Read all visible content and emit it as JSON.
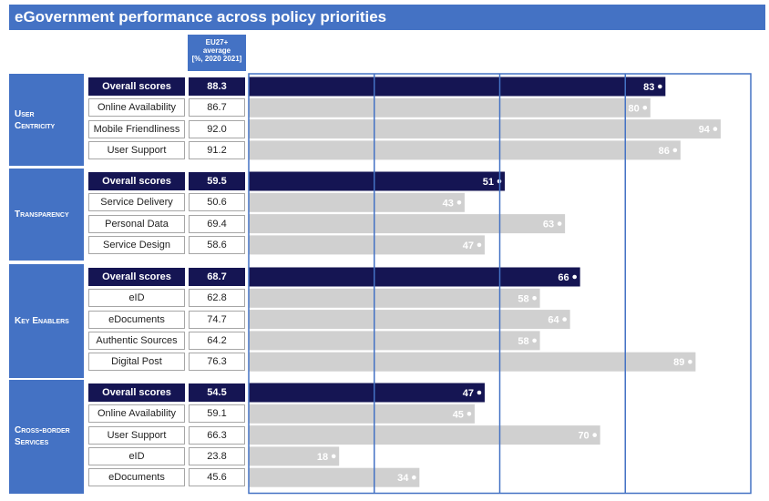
{
  "title": "eGovernment performance across policy priorities",
  "average_header": [
    "EU27+",
    "average",
    "[%, 2020 2021]"
  ],
  "chart_data": {
    "type": "bar",
    "orientation": "horizontal",
    "xlim": [
      0,
      100
    ],
    "grid": true,
    "colors": {
      "overall": "#151553",
      "sub": "#d0d0d0",
      "grid": "#4472c4",
      "header": "#4472c4"
    },
    "groups": [
      {
        "name": "User\nCentricity",
        "rows": [
          {
            "label": "Overall scores",
            "average": "88.3",
            "value": 83,
            "overall": true
          },
          {
            "label": "Online Availability",
            "average": "86.7",
            "value": 80
          },
          {
            "label": "Mobile Friendliness",
            "average": "92.0",
            "value": 94
          },
          {
            "label": "User Support",
            "average": "91.2",
            "value": 86
          }
        ]
      },
      {
        "name": "Transparency",
        "rows": [
          {
            "label": "Overall scores",
            "average": "59.5",
            "value": 51,
            "overall": true
          },
          {
            "label": "Service Delivery",
            "average": "50.6",
            "value": 43
          },
          {
            "label": "Personal Data",
            "average": "69.4",
            "value": 63
          },
          {
            "label": "Service Design",
            "average": "58.6",
            "value": 47
          }
        ]
      },
      {
        "name": "Key Enablers",
        "rows": [
          {
            "label": "Overall scores",
            "average": "68.7",
            "value": 66,
            "overall": true
          },
          {
            "label": "eID",
            "average": "62.8",
            "value": 58
          },
          {
            "label": "eDocuments",
            "average": "74.7",
            "value": 64
          },
          {
            "label": "Authentic Sources",
            "average": "64.2",
            "value": 58
          },
          {
            "label": "Digital Post",
            "average": "76.3",
            "value": 89
          }
        ]
      },
      {
        "name": "Cross-border\nServices",
        "rows": [
          {
            "label": "Overall scores",
            "average": "54.5",
            "value": 47,
            "overall": true
          },
          {
            "label": "Online Availability",
            "average": "59.1",
            "value": 45
          },
          {
            "label": "User Support",
            "average": "66.3",
            "value": 70
          },
          {
            "label": "eID",
            "average": "23.8",
            "value": 18
          },
          {
            "label": "eDocuments",
            "average": "45.6",
            "value": 34
          }
        ]
      }
    ]
  }
}
